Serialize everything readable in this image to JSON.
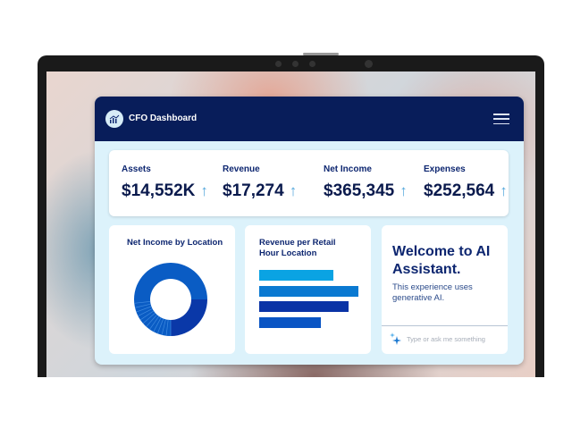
{
  "header": {
    "title": "CFO Dashboard",
    "logo_icon": "chart-growth-icon",
    "menu_icon": "hamburger-menu-icon"
  },
  "kpis": [
    {
      "label": "Assets",
      "value": "$14,552K",
      "trend": "↑"
    },
    {
      "label": "Revenue",
      "value": "$17,274",
      "trend": "↑"
    },
    {
      "label": "Net Income",
      "value": "$365,345",
      "trend": "↑"
    },
    {
      "label": "Expenses",
      "value": "$252,564",
      "trend": "↑"
    }
  ],
  "net_income_card": {
    "title": "Net Income by Location"
  },
  "revenue_card": {
    "title": "Revenue per Retail Hour Location",
    "bars": [
      0.75,
      1.0,
      0.9,
      0.62
    ],
    "colors": [
      "#0aa3e3",
      "#0a79d1",
      "#0a33a6",
      "#0a55c4"
    ]
  },
  "assistant": {
    "title": "Welcome to AI Assistant.",
    "subtitle": "This experience uses generative AI.",
    "placeholder": "Type or ask me something",
    "icon": "sparkle-icon"
  },
  "colors": {
    "header": "#081d5a",
    "accent": "#0a55c4"
  }
}
